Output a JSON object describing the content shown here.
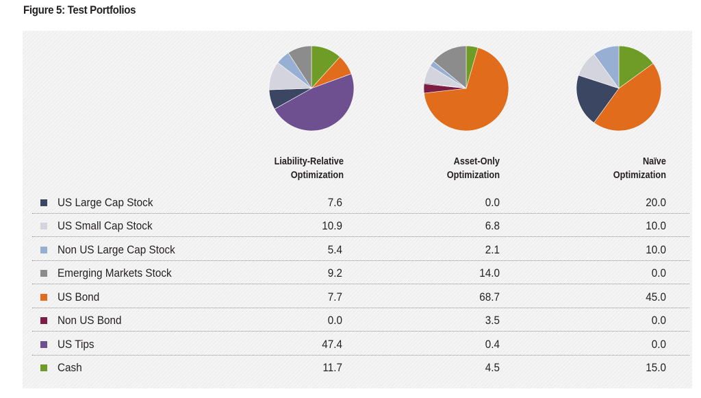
{
  "figure_title": "Figure 5: Test Portfolios",
  "chart_data": {
    "type": "pie",
    "categories": [
      "US Large Cap Stock",
      "US Small Cap Stock",
      "Non US Large Cap Stock",
      "Emerging Markets Stock",
      "US Bond",
      "Non US Bond",
      "US Tips",
      "Cash"
    ],
    "colors": [
      "#3a4662",
      "#d4d4de",
      "#97afd3",
      "#8c8c8c",
      "#e06c1c",
      "#7e1d42",
      "#6e5090",
      "#6f9c27"
    ],
    "pie_order": [
      "Cash",
      "US Bond",
      "Non US Bond",
      "US Tips",
      "US Large Cap Stock",
      "US Small Cap Stock",
      "Non US Large Cap Stock",
      "Emerging Markets Stock"
    ],
    "series": [
      {
        "name_lines": [
          "Liability-Relative",
          "Optimization"
        ],
        "values": [
          7.6,
          10.9,
          5.4,
          9.2,
          7.7,
          0.0,
          47.4,
          11.7
        ],
        "display": [
          "7.6",
          "10.9",
          "5.4",
          "9.2",
          "7.7",
          "0.0",
          "47.4",
          "11.7"
        ]
      },
      {
        "name_lines": [
          "Asset-Only",
          "Optimization"
        ],
        "values": [
          0.0,
          6.8,
          2.1,
          14.0,
          68.7,
          3.5,
          0.4,
          4.5
        ],
        "display": [
          "0.0",
          "6.8",
          "2.1",
          "14.0",
          "68.7",
          "3.5",
          "0.4",
          "4.5"
        ]
      },
      {
        "name_lines": [
          "Naïve",
          "Optimization"
        ],
        "values": [
          20.0,
          10.0,
          10.0,
          0.0,
          45.0,
          0.0,
          0.0,
          15.0
        ],
        "display": [
          "20.0",
          "10.0",
          "10.0",
          "0.0",
          "45.0",
          "0.0",
          "0.0",
          "15.0"
        ]
      }
    ]
  }
}
